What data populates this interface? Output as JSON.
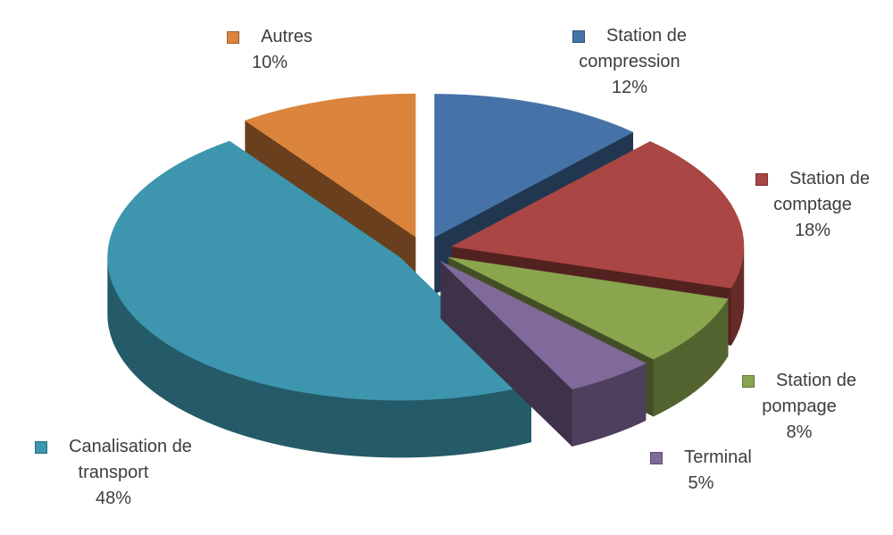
{
  "chart_data": {
    "type": "pie",
    "title": "",
    "style": "3d-exploded",
    "direction": "clockwise",
    "start_angle_deg": 0,
    "legend_position": "outside-labels",
    "unit": "%",
    "slices": [
      {
        "label": "Station de compression",
        "value": 12,
        "pct": "12%",
        "lines": [
          "Station de",
          "compression"
        ],
        "color": "#4572A7"
      },
      {
        "label": "Station de comptage",
        "value": 18,
        "pct": "18%",
        "lines": [
          "Station de",
          "comptage"
        ],
        "color": "#AA4643"
      },
      {
        "label": "Station de pompage",
        "value": 8,
        "pct": "8%",
        "lines": [
          "Station de",
          "pompage"
        ],
        "color": "#89A54E"
      },
      {
        "label": "Terminal",
        "value": 5,
        "pct": "5%",
        "lines": [
          "Terminal"
        ],
        "color": "#80699B"
      },
      {
        "label": "Canalisation de transport",
        "value": 48,
        "pct": "48%",
        "lines": [
          "Canalisation de",
          "transport"
        ],
        "color": "#3D96AE"
      },
      {
        "label": "Autres",
        "value": 10,
        "pct": "10%",
        "lines": [
          "Autres"
        ],
        "color": "#DB843D"
      }
    ],
    "text_color": "#3d3d3d",
    "background_color": "#ffffff"
  }
}
